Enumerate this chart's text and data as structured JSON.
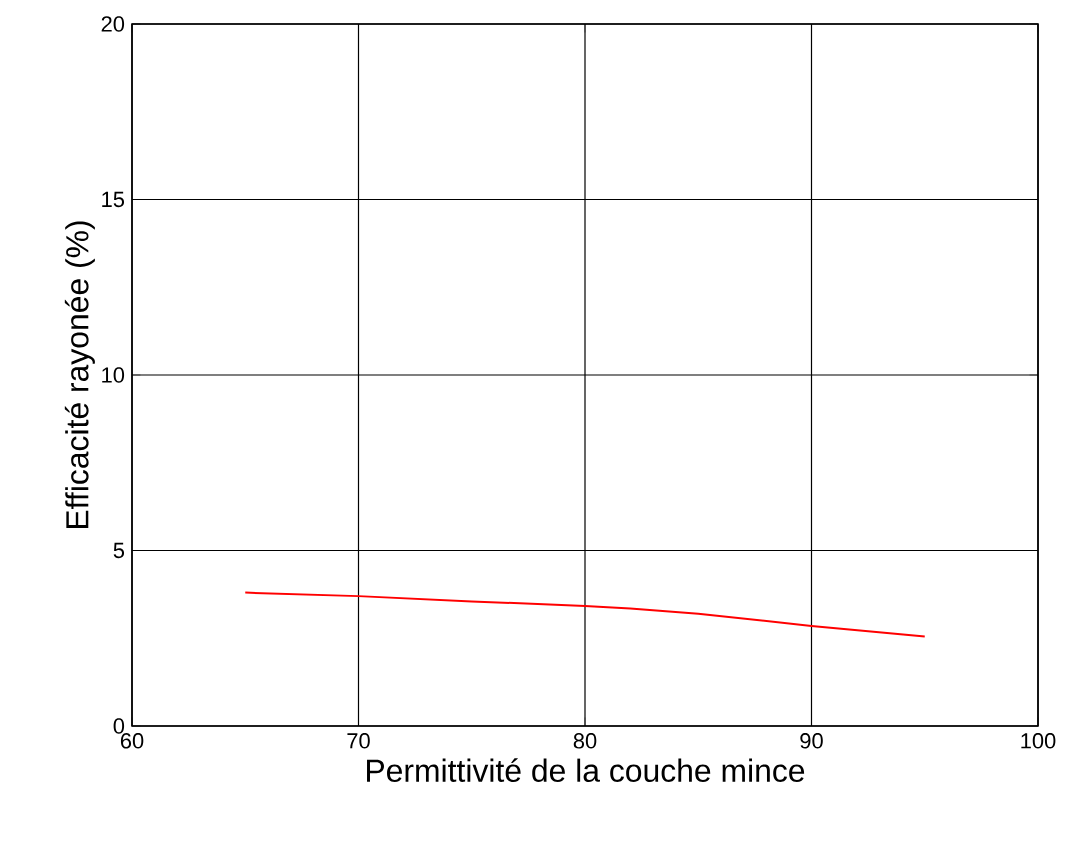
{
  "chart_data": {
    "type": "line",
    "xlabel": "Permittivité de la couche mince",
    "ylabel": "Efficacité rayonée (%)",
    "x": [
      65,
      70,
      75,
      80,
      82,
      85,
      90,
      95
    ],
    "series": [
      {
        "color": "#ff0000",
        "values": [
          3.8,
          3.7,
          3.55,
          3.42,
          3.35,
          3.2,
          2.85,
          2.55
        ]
      }
    ],
    "xlim": [
      60,
      100
    ],
    "ylim": [
      0,
      20
    ],
    "xticks": [
      60,
      70,
      80,
      90,
      100
    ],
    "yticks": [
      0,
      5,
      10,
      15,
      20
    ],
    "grid": true
  }
}
